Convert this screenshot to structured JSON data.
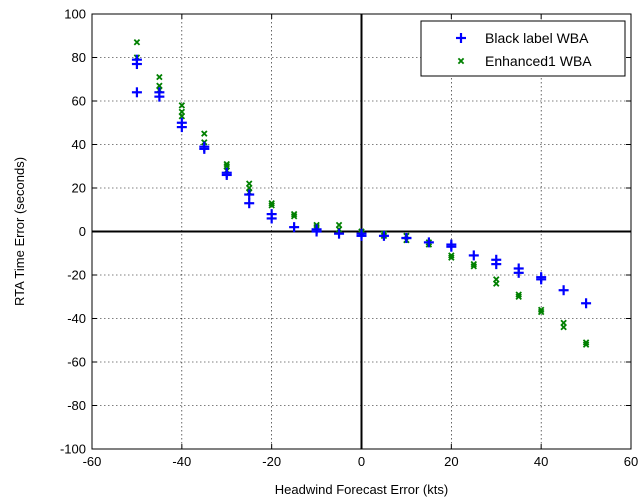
{
  "chart_data": {
    "type": "scatter",
    "title": "",
    "xlabel": "Headwind Forecast Error (kts)",
    "ylabel": "RTA Time Error (seconds)",
    "xlim": [
      -60,
      60
    ],
    "ylim": [
      -100,
      100
    ],
    "xticks": [
      -60,
      -40,
      -20,
      0,
      20,
      40,
      60
    ],
    "yticks": [
      -100,
      -80,
      -60,
      -40,
      -20,
      0,
      20,
      40,
      60,
      80,
      100
    ],
    "grid": true,
    "legend_position": "top-right",
    "series": [
      {
        "name": "Black label WBA",
        "marker": "plus",
        "color": "#0000ff",
        "points": [
          [
            -50,
            79
          ],
          [
            -50,
            77
          ],
          [
            -50,
            64
          ],
          [
            -45,
            64
          ],
          [
            -45,
            62
          ],
          [
            -40,
            50
          ],
          [
            -40,
            48
          ],
          [
            -35,
            39
          ],
          [
            -35,
            38
          ],
          [
            -30,
            27
          ],
          [
            -30,
            26
          ],
          [
            -25,
            17
          ],
          [
            -25,
            13
          ],
          [
            -20,
            8
          ],
          [
            -20,
            6
          ],
          [
            -15,
            2
          ],
          [
            -10,
            1
          ],
          [
            -10,
            0
          ],
          [
            -5,
            -1
          ],
          [
            0,
            -1
          ],
          [
            0,
            -2
          ],
          [
            5,
            -2
          ],
          [
            10,
            -3
          ],
          [
            10,
            -3
          ],
          [
            15,
            -5
          ],
          [
            20,
            -6
          ],
          [
            20,
            -7
          ],
          [
            25,
            -11
          ],
          [
            30,
            -13
          ],
          [
            30,
            -15
          ],
          [
            35,
            -17
          ],
          [
            35,
            -19
          ],
          [
            40,
            -21
          ],
          [
            40,
            -22
          ],
          [
            45,
            -27
          ],
          [
            50,
            -33
          ]
        ]
      },
      {
        "name": "Enhanced1 WBA",
        "marker": "x",
        "color": "#008000",
        "points": [
          [
            -50,
            87
          ],
          [
            -50,
            80
          ],
          [
            -45,
            71
          ],
          [
            -45,
            67
          ],
          [
            -45,
            65
          ],
          [
            -40,
            58
          ],
          [
            -40,
            55
          ],
          [
            -40,
            53
          ],
          [
            -35,
            45
          ],
          [
            -35,
            41
          ],
          [
            -30,
            31
          ],
          [
            -30,
            30
          ],
          [
            -30,
            28
          ],
          [
            -25,
            22
          ],
          [
            -25,
            20
          ],
          [
            -25,
            18
          ],
          [
            -20,
            13
          ],
          [
            -20,
            12
          ],
          [
            -15,
            8
          ],
          [
            -15,
            7
          ],
          [
            -10,
            3
          ],
          [
            -10,
            2
          ],
          [
            -5,
            3
          ],
          [
            -5,
            1
          ],
          [
            0,
            0
          ],
          [
            0,
            -1
          ],
          [
            5,
            -1
          ],
          [
            5,
            -2
          ],
          [
            10,
            -2
          ],
          [
            10,
            -4
          ],
          [
            15,
            -5
          ],
          [
            15,
            -6
          ],
          [
            20,
            -11
          ],
          [
            20,
            -12
          ],
          [
            25,
            -15
          ],
          [
            25,
            -16
          ],
          [
            30,
            -22
          ],
          [
            30,
            -24
          ],
          [
            35,
            -29
          ],
          [
            35,
            -30
          ],
          [
            40,
            -36
          ],
          [
            40,
            -37
          ],
          [
            45,
            -42
          ],
          [
            45,
            -44
          ],
          [
            50,
            -51
          ],
          [
            50,
            -52
          ]
        ]
      }
    ]
  }
}
